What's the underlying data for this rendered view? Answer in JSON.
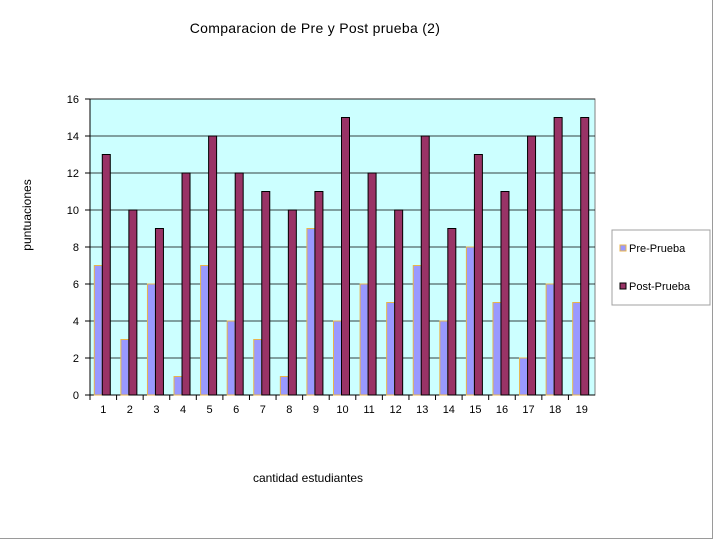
{
  "chart_data": {
    "type": "bar",
    "title": "Comparacion de Pre y Post prueba (2)",
    "xlabel": "cantidad estudiantes",
    "ylabel": "puntuaciones",
    "ylim": [
      0,
      16
    ],
    "yticks": [
      0,
      2,
      4,
      6,
      8,
      10,
      12,
      14,
      16
    ],
    "grid": true,
    "legend_position": "right",
    "categories": [
      "1",
      "2",
      "3",
      "4",
      "5",
      "6",
      "7",
      "8",
      "9",
      "10",
      "11",
      "12",
      "13",
      "14",
      "15",
      "16",
      "17",
      "18",
      "19"
    ],
    "series": [
      {
        "name": "Pre-Prueba",
        "color": "#9999ff",
        "edge": "#e8b44c",
        "values": [
          7,
          3,
          6,
          1,
          7,
          4,
          3,
          1,
          9,
          4,
          6,
          5,
          7,
          4,
          8,
          5,
          2,
          6,
          5
        ]
      },
      {
        "name": "Post-Prueba",
        "color": "#993366",
        "edge": "#000000",
        "values": [
          13,
          10,
          9,
          12,
          14,
          12,
          11,
          10,
          11,
          15,
          12,
          10,
          14,
          9,
          13,
          11,
          14,
          15,
          15
        ]
      }
    ],
    "plot_background": "#ccffff"
  }
}
